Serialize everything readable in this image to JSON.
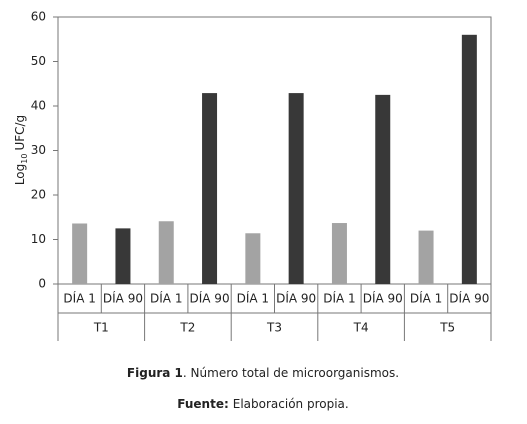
{
  "chart_data": {
    "type": "bar",
    "y_label_parts": [
      "Log",
      "10",
      "UFC/g"
    ],
    "categories": [
      "T1",
      "T2",
      "T3",
      "T4",
      "T5"
    ],
    "series": [
      {
        "name": "DÍA 1",
        "color": "#a3a3a3",
        "values": [
          13.6,
          14.1,
          11.4,
          13.7,
          12.0
        ]
      },
      {
        "name": "DÍA 90",
        "color": "#383838",
        "values": [
          12.5,
          42.9,
          42.9,
          42.5,
          56
        ]
      }
    ],
    "ylim": [
      0,
      60
    ],
    "yticks": [
      0,
      10,
      20,
      30,
      40,
      50,
      60
    ],
    "grid": false,
    "caption": {
      "label": "Figura 1",
      "text": ". Número total de microorganismos."
    },
    "source": {
      "label": "Fuente:",
      "text": "Elaboración propia."
    }
  }
}
